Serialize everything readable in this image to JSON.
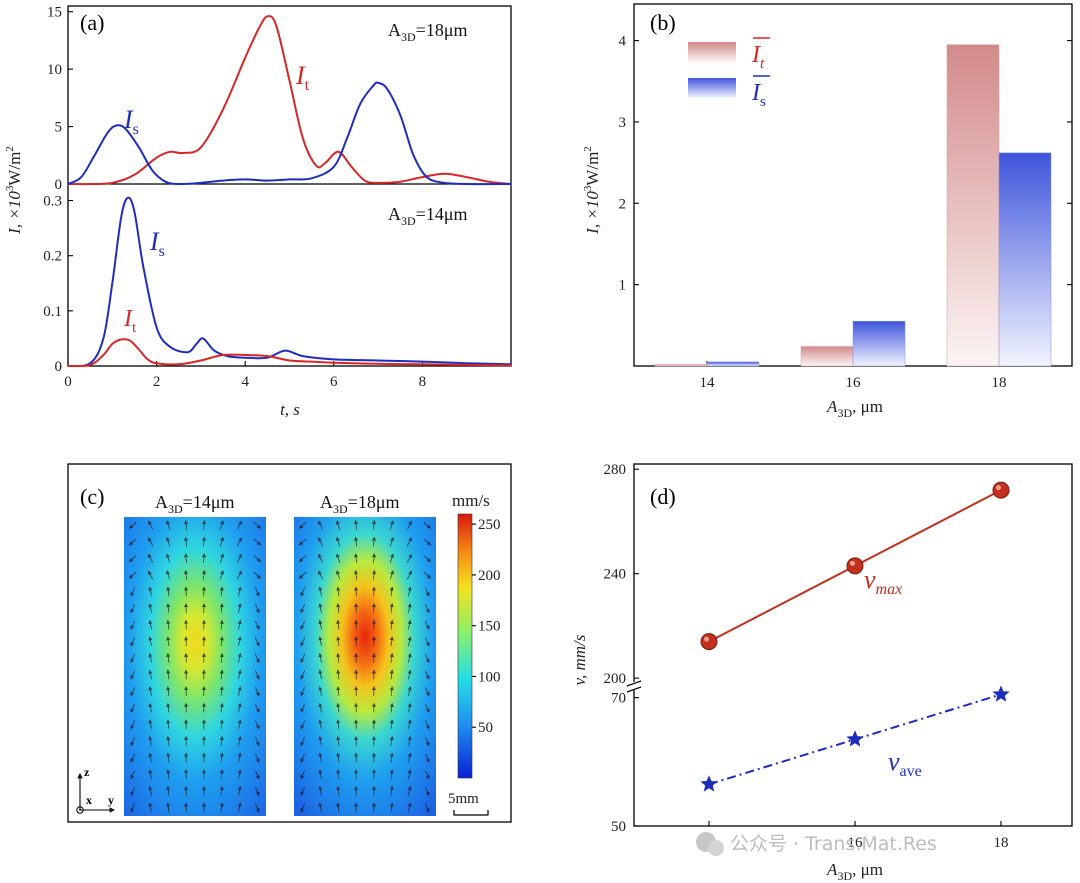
{
  "panel_labels": {
    "a": "(a)",
    "b": "(b)",
    "c": "(c)",
    "d": "(d)"
  },
  "watermark": "公众号 · Trans.Mat.Res",
  "chart_data": [
    {
      "id": "a-top",
      "type": "line",
      "annotation_base": "A",
      "annotation_sub": "3D",
      "annotation_value": "=18μm",
      "xlim": [
        0,
        10
      ],
      "ylim": [
        0,
        15.5
      ],
      "yticks": [
        0,
        5,
        10,
        15
      ],
      "series": [
        {
          "name": "I",
          "sub": "t",
          "color": "#d62728",
          "x": [
            0,
            0.5,
            1.0,
            1.5,
            2.0,
            2.3,
            2.6,
            3.0,
            3.5,
            4.0,
            4.3,
            4.5,
            4.7,
            5.0,
            5.3,
            5.6,
            5.8,
            6.1,
            6.4,
            6.7,
            7.0,
            7.5,
            8.0,
            8.5,
            9.0,
            9.5,
            10
          ],
          "y": [
            0,
            0,
            0.1,
            0.8,
            2.3,
            2.8,
            2.7,
            3.2,
            6.5,
            11.0,
            13.5,
            14.6,
            13.8,
            9.0,
            4.0,
            1.6,
            1.8,
            2.8,
            1.5,
            0.3,
            0.1,
            0.2,
            0.6,
            0.9,
            0.6,
            0.2,
            0
          ]
        },
        {
          "name": "I",
          "sub": "s",
          "color": "#1f2dbf",
          "x": [
            0,
            0.3,
            0.6,
            0.9,
            1.1,
            1.3,
            1.6,
            1.9,
            2.2,
            2.5,
            3.0,
            3.5,
            4.0,
            4.5,
            5.0,
            5.5,
            6.0,
            6.3,
            6.6,
            6.9,
            7.0,
            7.2,
            7.5,
            7.8,
            8.1,
            8.5,
            9.0,
            10
          ],
          "y": [
            0,
            0.6,
            2.5,
            4.5,
            5.1,
            4.8,
            3.2,
            1.2,
            0.2,
            0,
            0.1,
            0.3,
            0.4,
            0.3,
            0.4,
            0.5,
            1.5,
            4.0,
            7.0,
            8.6,
            8.8,
            8.3,
            6.0,
            2.5,
            0.6,
            0.1,
            0,
            0
          ]
        }
      ]
    },
    {
      "id": "a-bottom",
      "type": "line",
      "annotation_base": "A",
      "annotation_sub": "3D",
      "annotation_value": "=14μm",
      "xlabel": "t, s",
      "ylabel_base": "I, ×10",
      "ylabel_exp": "3",
      "ylabel_unit": "W/m",
      "ylabel_unit_exp": "2",
      "xlim": [
        0,
        10
      ],
      "ylim": [
        0,
        0.33
      ],
      "xticks": [
        0,
        2,
        4,
        6,
        8
      ],
      "yticks": [
        0,
        0.1,
        0.2,
        0.3
      ],
      "series": [
        {
          "name": "I",
          "sub": "s",
          "color": "#1f2dbf",
          "x": [
            0,
            0.5,
            0.8,
            1.0,
            1.2,
            1.35,
            1.5,
            1.7,
            2.0,
            2.3,
            2.7,
            2.9,
            3.05,
            3.3,
            3.6,
            4.0,
            4.5,
            4.9,
            5.3,
            6.0,
            7.0,
            8.0,
            9.0,
            10
          ],
          "y": [
            0,
            0.005,
            0.05,
            0.15,
            0.27,
            0.305,
            0.28,
            0.18,
            0.07,
            0.035,
            0.025,
            0.04,
            0.05,
            0.028,
            0.018,
            0.015,
            0.015,
            0.028,
            0.018,
            0.012,
            0.01,
            0.008,
            0.005,
            0.003
          ]
        },
        {
          "name": "I",
          "sub": "t",
          "color": "#d62728",
          "x": [
            0,
            0.5,
            0.8,
            1.0,
            1.2,
            1.4,
            1.6,
            1.8,
            2.0,
            2.5,
            3.0,
            3.5,
            4.0,
            4.5,
            5.0,
            5.5,
            6.0,
            7.0,
            8.0,
            9.0,
            10
          ],
          "y": [
            0,
            0.002,
            0.02,
            0.04,
            0.048,
            0.046,
            0.03,
            0.012,
            0.005,
            0.003,
            0.01,
            0.02,
            0.02,
            0.018,
            0.01,
            0.008,
            0.006,
            0.004,
            0.003,
            0.002,
            0.001
          ]
        }
      ]
    },
    {
      "id": "b",
      "type": "bar",
      "xlabel_base": "A",
      "xlabel_sub": "3D",
      "xlabel_unit": ", μm",
      "ylabel_base": "I, ×10",
      "ylabel_exp": "3",
      "ylabel_unit": "W/m",
      "ylabel_unit_exp": "2",
      "categories": [
        "14",
        "16",
        "18"
      ],
      "ylim": [
        0,
        4.45
      ],
      "yticks": [
        1,
        2,
        3,
        4
      ],
      "series": [
        {
          "name": "I",
          "sub": "t",
          "color": "#d08080",
          "values": [
            0.02,
            0.24,
            3.95
          ]
        },
        {
          "name": "I",
          "sub": "s",
          "color": "#3a4fd8",
          "values": [
            0.05,
            0.55,
            2.62
          ]
        }
      ]
    },
    {
      "id": "c",
      "type": "heatmap",
      "maps": [
        {
          "label_base": "A",
          "label_sub": "3D",
          "label_value": "=14μm",
          "peak": 200
        },
        {
          "label_base": "A",
          "label_sub": "3D",
          "label_value": "=18μm",
          "peak": 255
        }
      ],
      "colorbar_unit": "mm/s",
      "colorbar_range": [
        0,
        260
      ],
      "colorbar_ticks": [
        50,
        100,
        150,
        200,
        250
      ],
      "scale_bar": "5mm",
      "axes_labels": {
        "z": "z",
        "x": "x",
        "y": "y"
      }
    },
    {
      "id": "d",
      "type": "line",
      "xlabel_base": "A",
      "xlabel_sub": "3D",
      "xlabel_unit": ", μm",
      "ylabel": "v, mm/s",
      "x": [
        14,
        16,
        18
      ],
      "axis_break": true,
      "upper_ylim": [
        197,
        282
      ],
      "upper_yticks": [
        200,
        240,
        280
      ],
      "lower_ylim": [
        50,
        71.5
      ],
      "lower_yticks": [
        50,
        70
      ],
      "series": [
        {
          "name": "v",
          "sub": "max",
          "color": "#c0301c",
          "y": [
            214,
            243,
            272
          ]
        },
        {
          "name": "v",
          "sub": "ave",
          "color": "#1f2dbf",
          "y": [
            56.5,
            63.5,
            70.5
          ]
        }
      ]
    }
  ]
}
